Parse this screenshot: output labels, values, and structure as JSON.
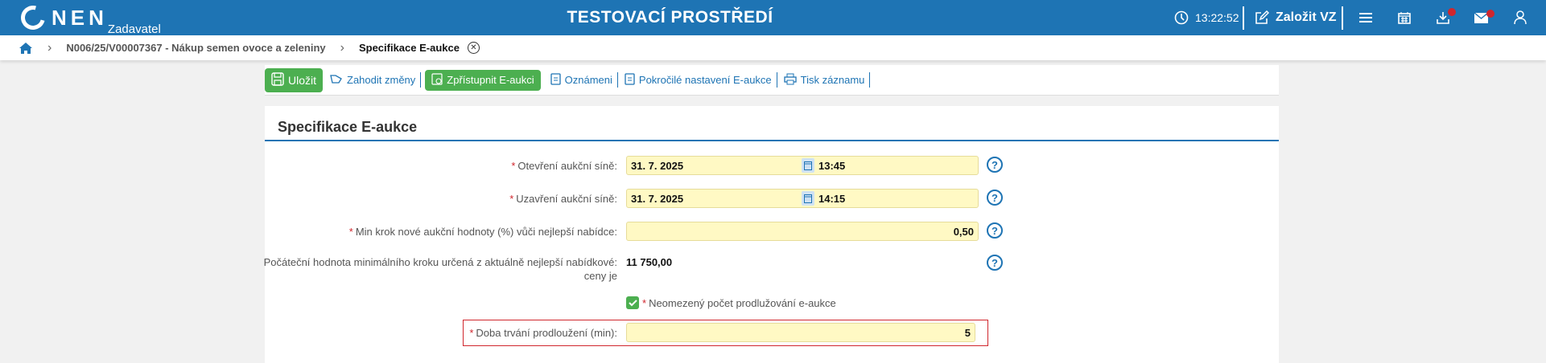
{
  "header": {
    "logo": "NEN",
    "role": "Zadavatel",
    "environment": "TESTOVACÍ PROSTŘEDÍ",
    "clock": "13:22:52",
    "create_label": "Založit VZ",
    "icons": [
      "clock-icon",
      "edit-icon",
      "menu-icon",
      "calendar-icon",
      "download-icon",
      "mail-icon",
      "user-icon"
    ],
    "accent": "#1e74b4",
    "badge_color": "#d0262d"
  },
  "breadcrumb": {
    "items": [
      "N006/25/V00007367 - Nákup semen ovoce a zeleniny",
      "Specifikace E-aukce"
    ]
  },
  "toolbar": {
    "save": "Uložit",
    "discard": "Zahodit změny",
    "publish": "Zpřístupnit E-aukci",
    "notice": "Oznámeni",
    "advanced": "Pokročilé nastavení E-aukce",
    "print": "Tisk záznamu"
  },
  "form": {
    "title": "Specifikace E-aukce",
    "open": {
      "label": "Otevření aukční síně:",
      "date": "31. 7. 2025",
      "time": "13:45"
    },
    "close": {
      "label": "Uzavření aukční síně:",
      "date": "31. 7. 2025",
      "time": "14:15"
    },
    "min_step": {
      "label": "Min krok nové aukční hodnoty (%) vůči nejlepší nabídce:",
      "value": "0,50"
    },
    "initial": {
      "label_1": "Počáteční hodnota minimálního kroku určená z aktuálně nejlepší nabídkové:",
      "label_2": "ceny je",
      "value": "11 750,00"
    },
    "unlimited": {
      "label": "Neomezený počet prodlužování e-aukce",
      "checked": true
    },
    "duration": {
      "label": "Doba trvání prodloužení (min):",
      "value": "5"
    },
    "help": "?"
  }
}
